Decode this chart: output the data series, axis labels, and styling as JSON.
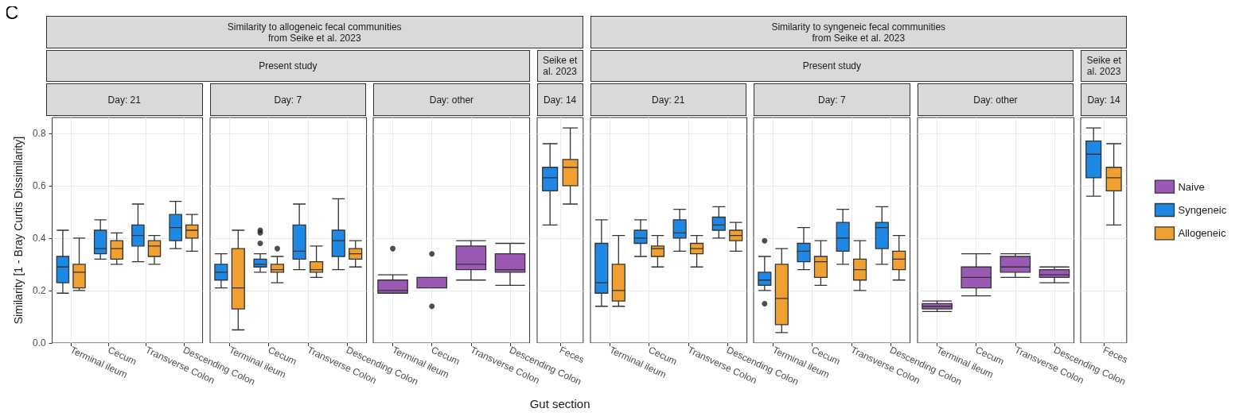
{
  "chart_data": [
    {
      "type": "box",
      "title": "Day: 21",
      "annotations": [
        "C"
      ],
      "ylabel": "Similarity [1 - Bray Curtis Dissimilarity]",
      "categories": [
        "Terminal ileum",
        "Cecum",
        "Transverse Colon",
        "Descending Colon"
      ],
      "ylim": [
        0,
        0.86
      ],
      "yticks": [
        {
          "value": 0,
          "label": "0.0"
        },
        {
          "value": 0.2,
          "label": "0.2"
        },
        {
          "value": 0.4,
          "label": "0.4"
        },
        {
          "value": 0.6,
          "label": "0.6"
        },
        {
          "value": 0.8,
          "label": "0.8"
        }
      ],
      "grid": true,
      "series": [
        {
          "color": "#1e88e5",
          "boxes": [
            {
              "low": 0.19,
              "q1": 0.23,
              "median": 0.29,
              "q3": 0.33,
              "high": 0.43
            },
            {
              "low": 0.32,
              "q1": 0.34,
              "median": 0.36,
              "q3": 0.43,
              "high": 0.47
            },
            {
              "low": 0.31,
              "q1": 0.37,
              "median": 0.41,
              "q3": 0.45,
              "high": 0.53
            },
            {
              "low": 0.36,
              "q1": 0.39,
              "median": 0.44,
              "q3": 0.49,
              "high": 0.54
            }
          ]
        },
        {
          "color": "#f0a030",
          "boxes": [
            {
              "low": 0.2,
              "q1": 0.21,
              "median": 0.27,
              "q3": 0.3,
              "high": 0.4
            },
            {
              "low": 0.3,
              "q1": 0.32,
              "median": 0.36,
              "q3": 0.39,
              "high": 0.42
            },
            {
              "low": 0.3,
              "q1": 0.33,
              "median": 0.37,
              "q3": 0.39,
              "high": 0.41
            },
            {
              "low": 0.35,
              "q1": 0.4,
              "median": 0.43,
              "q3": 0.45,
              "high": 0.49
            }
          ]
        }
      ]
    },
    {
      "type": "box",
      "title": "Day: 7",
      "subtitle": "Present study",
      "annotations": [
        "Similarity to allogeneic fecal communities from Seike et al. 2023"
      ],
      "categories": [
        "Terminal ileum",
        "Cecum",
        "Transverse Colon",
        "Descending Colon"
      ],
      "ylim": [
        0,
        0.86
      ],
      "yticks": [
        0,
        0.2,
        0.4,
        0.6,
        0.8
      ],
      "grid": true,
      "tick_labels": "x",
      "series": [
        {
          "color": "#1e88e5",
          "boxes": [
            {
              "low": 0.21,
              "q1": 0.24,
              "median": 0.27,
              "q3": 0.3,
              "high": 0.34
            },
            {
              "low": 0.27,
              "q1": 0.29,
              "median": 0.3,
              "q3": 0.32,
              "high": 0.34,
              "outliers": [
                0.43,
                0.42,
                0.38
              ]
            },
            {
              "low": 0.28,
              "q1": 0.32,
              "median": 0.35,
              "q3": 0.45,
              "high": 0.53
            },
            {
              "low": 0.28,
              "q1": 0.33,
              "median": 0.39,
              "q3": 0.43,
              "high": 0.55
            }
          ]
        },
        {
          "color": "#f0a030",
          "boxes": [
            {
              "low": 0.05,
              "q1": 0.13,
              "median": 0.21,
              "q3": 0.36,
              "high": 0.43
            },
            {
              "low": 0.23,
              "q1": 0.27,
              "median": 0.28,
              "q3": 0.3,
              "high": 0.33,
              "outliers": [
                0.36
              ]
            },
            {
              "low": 0.25,
              "q1": 0.27,
              "median": 0.28,
              "q3": 0.31,
              "high": 0.37
            },
            {
              "low": 0.29,
              "q1": 0.32,
              "median": 0.34,
              "q3": 0.36,
              "high": 0.39
            }
          ]
        }
      ]
    },
    {
      "type": "box",
      "title": "Day: other",
      "categories": [
        "Terminal ileum",
        "Cecum",
        "Transverse Colon",
        "Descending Colon"
      ],
      "ylim": [
        0,
        0.86
      ],
      "yticks": [
        0,
        0.2,
        0.4,
        0.6,
        0.8
      ],
      "grid": true,
      "tick_labels": "x",
      "series": [
        {
          "color": "#9b59b6",
          "boxes": [
            {
              "low": 0.19,
              "q1": 0.19,
              "median": 0.2,
              "q3": 0.24,
              "high": 0.26,
              "outliers": [
                0.36
              ]
            },
            {
              "low": 0.21,
              "q1": 0.21,
              "median": 0.21,
              "q3": 0.25,
              "high": 0.25,
              "outliers": [
                0.34,
                0.14
              ]
            },
            {
              "low": 0.24,
              "q1": 0.28,
              "median": 0.3,
              "q3": 0.37,
              "high": 0.39
            },
            {
              "low": 0.22,
              "q1": 0.27,
              "median": 0.28,
              "q3": 0.34,
              "high": 0.38
            }
          ]
        }
      ]
    },
    {
      "type": "box",
      "title": "Day: 14",
      "subtitle": "Seike et al. 2023",
      "xlabel": "Gut section",
      "categories": [
        "Feces"
      ],
      "ylim": [
        0,
        0.86
      ],
      "yticks": [
        0,
        0.2,
        0.4,
        0.6,
        0.8
      ],
      "grid": true,
      "tick_labels": "x",
      "series": [
        {
          "color": "#1e88e5",
          "boxes": [
            {
              "low": 0.45,
              "q1": 0.58,
              "median": 0.63,
              "q3": 0.67,
              "high": 0.76
            }
          ]
        },
        {
          "color": "#f0a030",
          "boxes": [
            {
              "low": 0.53,
              "q1": 0.6,
              "median": 0.67,
              "q3": 0.7,
              "high": 0.82
            }
          ]
        }
      ]
    },
    {
      "type": "box",
      "title": "Day: 21",
      "categories": [
        "Terminal ileum",
        "Cecum",
        "Transverse Colon",
        "Descending Colon"
      ],
      "ylim": [
        0,
        0.86
      ],
      "yticks": [
        0,
        0.2,
        0.4,
        0.6,
        0.8
      ],
      "grid": true,
      "tick_labels": "x",
      "series": [
        {
          "color": "#1e88e5",
          "boxes": [
            {
              "low": 0.14,
              "q1": 0.19,
              "median": 0.23,
              "q3": 0.38,
              "high": 0.47
            },
            {
              "low": 0.33,
              "q1": 0.38,
              "median": 0.4,
              "q3": 0.43,
              "high": 0.47
            },
            {
              "low": 0.35,
              "q1": 0.4,
              "median": 0.42,
              "q3": 0.47,
              "high": 0.51
            },
            {
              "low": 0.4,
              "q1": 0.43,
              "median": 0.45,
              "q3": 0.48,
              "high": 0.52
            }
          ]
        },
        {
          "color": "#f0a030",
          "boxes": [
            {
              "low": 0.14,
              "q1": 0.16,
              "median": 0.2,
              "q3": 0.3,
              "high": 0.41
            },
            {
              "low": 0.29,
              "q1": 0.33,
              "median": 0.36,
              "q3": 0.37,
              "high": 0.41
            },
            {
              "low": 0.29,
              "q1": 0.34,
              "median": 0.36,
              "q3": 0.38,
              "high": 0.41
            },
            {
              "low": 0.35,
              "q1": 0.39,
              "median": 0.41,
              "q3": 0.43,
              "high": 0.46
            }
          ]
        }
      ]
    },
    {
      "type": "box",
      "title": "Day: 7",
      "subtitle": "Present study",
      "annotations": [
        "Similarity to syngeneic fecal communities from Seike et al. 2023"
      ],
      "categories": [
        "Terminal ileum",
        "Cecum",
        "Transverse Colon",
        "Descending Colon"
      ],
      "ylim": [
        0,
        0.86
      ],
      "yticks": [
        0,
        0.2,
        0.4,
        0.6,
        0.8
      ],
      "grid": true,
      "tick_labels": "x",
      "series": [
        {
          "color": "#1e88e5",
          "boxes": [
            {
              "low": 0.2,
              "q1": 0.22,
              "median": 0.24,
              "q3": 0.27,
              "high": 0.33,
              "outliers": [
                0.39,
                0.15
              ]
            },
            {
              "low": 0.28,
              "q1": 0.31,
              "median": 0.35,
              "q3": 0.38,
              "high": 0.44
            },
            {
              "low": 0.3,
              "q1": 0.35,
              "median": 0.4,
              "q3": 0.46,
              "high": 0.51
            },
            {
              "low": 0.3,
              "q1": 0.36,
              "median": 0.44,
              "q3": 0.46,
              "high": 0.52
            }
          ]
        },
        {
          "color": "#f0a030",
          "boxes": [
            {
              "low": 0.04,
              "q1": 0.07,
              "median": 0.17,
              "q3": 0.3,
              "high": 0.36
            },
            {
              "low": 0.22,
              "q1": 0.25,
              "median": 0.31,
              "q3": 0.33,
              "high": 0.39
            },
            {
              "low": 0.2,
              "q1": 0.24,
              "median": 0.28,
              "q3": 0.32,
              "high": 0.39
            },
            {
              "low": 0.24,
              "q1": 0.28,
              "median": 0.32,
              "q3": 0.35,
              "high": 0.41
            }
          ]
        }
      ]
    },
    {
      "type": "box",
      "title": "Day: other",
      "categories": [
        "Terminal ileum",
        "Cecum",
        "Transverse Colon",
        "Descending Colon"
      ],
      "ylim": [
        0,
        0.86
      ],
      "yticks": [
        0,
        0.2,
        0.4,
        0.6,
        0.8
      ],
      "grid": true,
      "tick_labels": "x",
      "series": [
        {
          "color": "#9b59b6",
          "boxes": [
            {
              "low": 0.12,
              "q1": 0.13,
              "median": 0.14,
              "q3": 0.15,
              "high": 0.16
            },
            {
              "low": 0.18,
              "q1": 0.21,
              "median": 0.25,
              "q3": 0.29,
              "high": 0.34
            },
            {
              "low": 0.25,
              "q1": 0.27,
              "median": 0.29,
              "q3": 0.33,
              "high": 0.34
            },
            {
              "low": 0.23,
              "q1": 0.25,
              "median": 0.26,
              "q3": 0.28,
              "high": 0.29
            }
          ]
        }
      ]
    },
    {
      "type": "box",
      "title": "Day: 14",
      "subtitle": "Seike et al. 2023",
      "categories": [
        "Feces"
      ],
      "ylim": [
        0,
        0.86
      ],
      "yticks": [
        0,
        0.2,
        0.4,
        0.6,
        0.8
      ],
      "grid": true,
      "tick_labels": "x",
      "legend": "right",
      "series": [
        {
          "name": "Naive",
          "color": "#9b59b6",
          "boxes": [
            null
          ]
        },
        {
          "name": "Syngeneic",
          "color": "#1e88e5",
          "boxes": [
            {
              "low": 0.56,
              "q1": 0.63,
              "median": 0.72,
              "q3": 0.77,
              "high": 0.82
            }
          ]
        },
        {
          "name": "Allogeneic",
          "color": "#f0a030",
          "boxes": [
            {
              "low": 0.45,
              "q1": 0.58,
              "median": 0.63,
              "q3": 0.67,
              "high": 0.76
            }
          ]
        }
      ]
    }
  ]
}
